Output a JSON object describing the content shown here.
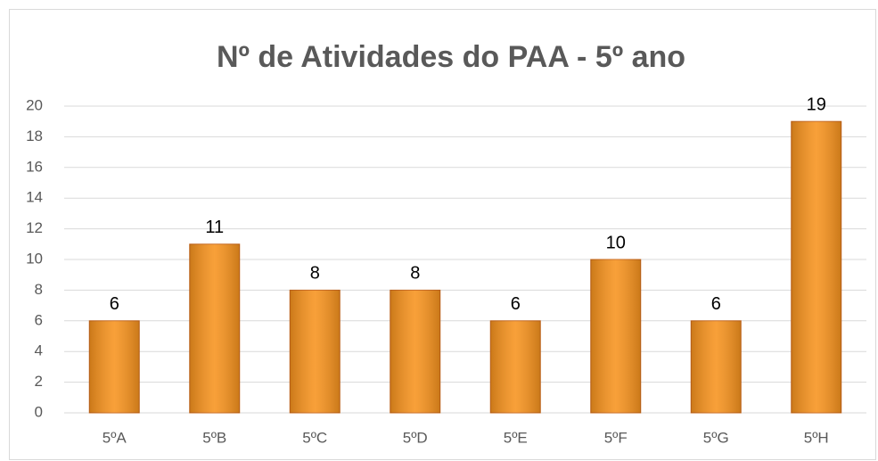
{
  "chart_data": {
    "type": "bar",
    "title": "Nº de Atividades do PAA - 5º ano",
    "categories": [
      "5ºA",
      "5ºB",
      "5ºC",
      "5ºD",
      "5ºE",
      "5ºF",
      "5ºG",
      "5ºH"
    ],
    "values": [
      6,
      11,
      8,
      8,
      6,
      10,
      6,
      19
    ],
    "color": "#f7931e",
    "ylim": [
      0,
      20
    ],
    "yticks": [
      0,
      2,
      4,
      6,
      8,
      10,
      12,
      14,
      16,
      18,
      20
    ],
    "grid": true
  }
}
